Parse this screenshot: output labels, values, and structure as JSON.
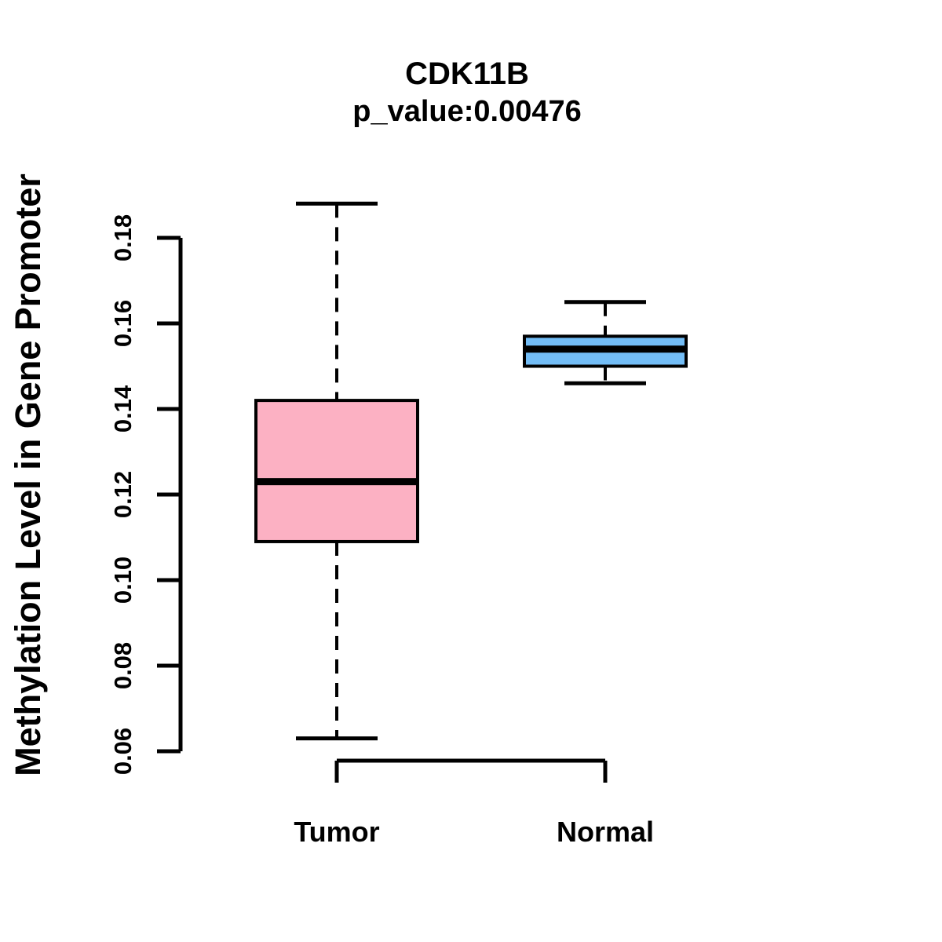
{
  "chart_data": {
    "type": "boxplot",
    "title": "CDK11B",
    "subtitle": "p_value:0.00476",
    "ylabel": "Methylation Level in Gene Promoter",
    "xlabel": "",
    "categories": [
      "Tumor",
      "Normal"
    ],
    "ytick_labels": [
      "0.06",
      "0.08",
      "0.10",
      "0.12",
      "0.14",
      "0.16",
      "0.18"
    ],
    "ytick_values": [
      0.06,
      0.08,
      0.1,
      0.12,
      0.14,
      0.16,
      0.18
    ],
    "axis_range": [
      0.06,
      0.18
    ],
    "grid": false,
    "legend": "none",
    "series": [
      {
        "name": "Tumor",
        "fill_color": "#FCB1C3",
        "whisker_low": 0.063,
        "q1": 0.109,
        "median": 0.123,
        "q3": 0.142,
        "whisker_high": 0.188
      },
      {
        "name": "Normal",
        "fill_color": "#73BDF6",
        "whisker_low": 0.146,
        "q1": 0.15,
        "median": 0.154,
        "q3": 0.157,
        "whisker_high": 0.165
      }
    ],
    "line_color": "#000000",
    "background_color": "#FFFFFF"
  }
}
